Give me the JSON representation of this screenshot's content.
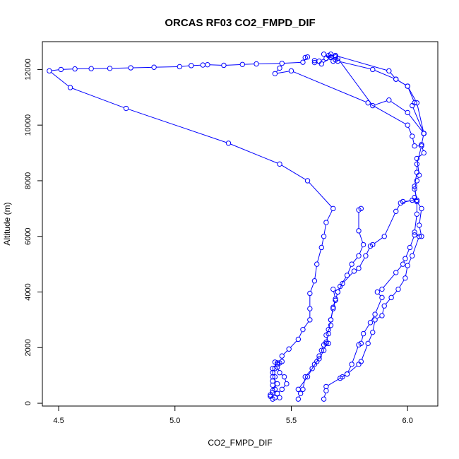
{
  "chart_data": {
    "type": "line",
    "title": "ORCAS RF03 CO2_FMPD_DIF",
    "xlabel": "CO2_FMPD_DIF",
    "ylabel": "Altitude (m)",
    "xlim": [
      4.43,
      6.13
    ],
    "ylim": [
      -100,
      13000
    ],
    "xticks": [
      4.5,
      5.0,
      5.5,
      6.0
    ],
    "yticks": [
      0,
      2000,
      4000,
      6000,
      8000,
      10000,
      12000
    ],
    "xtick_labels": [
      "4.5",
      "5.0",
      "5.5",
      "6.0"
    ],
    "ytick_labels": [
      "0",
      "2000",
      "4000",
      "6000",
      "8000",
      "10000",
      "12000"
    ],
    "marker": "open-circle",
    "grid": false,
    "color": "#0000ff",
    "series": [
      {
        "values": [
          [
            5.42,
            150
          ],
          [
            5.41,
            250
          ],
          [
            5.42,
            380
          ],
          [
            5.43,
            500
          ],
          [
            5.42,
            650
          ],
          [
            5.42,
            800
          ],
          [
            5.43,
            950
          ],
          [
            5.42,
            1100
          ],
          [
            5.43,
            1250
          ],
          [
            5.44,
            1400
          ],
          [
            5.45,
            1450
          ],
          [
            5.46,
            1500
          ],
          [
            5.46,
            1700
          ],
          [
            5.49,
            1950
          ],
          [
            5.53,
            2300
          ],
          [
            5.55,
            2650
          ],
          [
            5.58,
            3000
          ],
          [
            5.58,
            3400
          ],
          [
            5.58,
            3950
          ],
          [
            5.6,
            4400
          ],
          [
            5.61,
            5000
          ],
          [
            5.63,
            5600
          ],
          [
            5.64,
            6000
          ],
          [
            5.65,
            6500
          ],
          [
            5.68,
            7000
          ],
          [
            5.57,
            8000
          ],
          [
            5.45,
            8600
          ],
          [
            5.23,
            9350
          ],
          [
            4.79,
            10600
          ],
          [
            4.55,
            11350
          ],
          [
            4.46,
            11950
          ],
          [
            4.51,
            12000
          ],
          [
            4.57,
            12020
          ],
          [
            4.64,
            12030
          ],
          [
            4.72,
            12040
          ],
          [
            4.81,
            12060
          ],
          [
            4.91,
            12080
          ],
          [
            5.02,
            12100
          ],
          [
            5.07,
            12140
          ],
          [
            5.12,
            12160
          ],
          [
            5.14,
            12170
          ],
          [
            5.21,
            12150
          ],
          [
            5.29,
            12180
          ],
          [
            5.35,
            12200
          ],
          [
            5.46,
            12220
          ],
          [
            5.55,
            12260
          ],
          [
            5.57,
            12450
          ],
          [
            5.56,
            12430
          ]
        ]
      },
      {
        "values": [
          [
            5.45,
            200
          ],
          [
            5.44,
            350
          ],
          [
            5.46,
            500
          ],
          [
            5.48,
            700
          ],
          [
            5.47,
            950
          ],
          [
            5.45,
            1100
          ],
          [
            5.44,
            1300
          ],
          [
            5.43,
            1480
          ],
          [
            5.44,
            1450
          ],
          [
            5.42,
            1250
          ],
          [
            5.42,
            950
          ],
          [
            5.44,
            700
          ],
          [
            5.42,
            450
          ],
          [
            5.41,
            300
          ],
          [
            5.43,
            200
          ]
        ]
      },
      {
        "values": [
          [
            5.53,
            150
          ],
          [
            5.54,
            350
          ],
          [
            5.55,
            500
          ],
          [
            5.56,
            950
          ],
          [
            5.59,
            1250
          ],
          [
            5.61,
            1500
          ],
          [
            5.62,
            1700
          ],
          [
            5.63,
            1900
          ],
          [
            5.64,
            2100
          ],
          [
            5.65,
            2200
          ],
          [
            5.66,
            2500
          ],
          [
            5.66,
            2650
          ],
          [
            5.67,
            3000
          ],
          [
            5.68,
            3400
          ],
          [
            5.69,
            3700
          ],
          [
            5.7,
            4000
          ],
          [
            5.71,
            4200
          ],
          [
            5.74,
            4600
          ],
          [
            5.76,
            5000
          ],
          [
            5.79,
            5300
          ],
          [
            5.81,
            5700
          ],
          [
            5.79,
            6200
          ],
          [
            5.79,
            6950
          ],
          [
            5.8,
            7000
          ]
        ]
      },
      {
        "values": [
          [
            5.53,
            500
          ],
          [
            5.57,
            950
          ],
          [
            5.6,
            1400
          ],
          [
            5.62,
            1600
          ],
          [
            5.64,
            1900
          ],
          [
            5.65,
            2150
          ],
          [
            5.66,
            2150
          ],
          [
            5.65,
            2450
          ],
          [
            5.67,
            2800
          ],
          [
            5.67,
            3000
          ],
          [
            5.68,
            3450
          ],
          [
            5.69,
            3750
          ],
          [
            5.68,
            4100
          ],
          [
            5.7,
            4000
          ],
          [
            5.72,
            4300
          ],
          [
            5.77,
            4750
          ],
          [
            5.79,
            4850
          ],
          [
            5.82,
            5300
          ],
          [
            5.84,
            5650
          ],
          [
            5.85,
            5700
          ],
          [
            5.9,
            6000
          ],
          [
            5.95,
            6900
          ],
          [
            5.97,
            7200
          ],
          [
            6.02,
            7300
          ],
          [
            6.03,
            7400
          ],
          [
            6.04,
            7300
          ],
          [
            5.98,
            7250
          ]
        ]
      },
      {
        "values": [
          [
            5.64,
            150
          ],
          [
            5.65,
            450
          ],
          [
            5.65,
            600
          ],
          [
            5.72,
            950
          ],
          [
            5.74,
            1050
          ],
          [
            5.79,
            1400
          ],
          [
            5.8,
            1500
          ],
          [
            5.83,
            2150
          ],
          [
            5.85,
            2550
          ],
          [
            5.86,
            3000
          ],
          [
            5.89,
            3150
          ],
          [
            5.9,
            3500
          ],
          [
            5.93,
            3800
          ],
          [
            5.96,
            4100
          ],
          [
            5.99,
            4500
          ],
          [
            6.0,
            4950
          ],
          [
            6.02,
            5300
          ],
          [
            6.05,
            6000
          ],
          [
            6.03,
            6150
          ],
          [
            6.04,
            6800
          ],
          [
            6.04,
            7300
          ],
          [
            6.03,
            7700
          ],
          [
            6.04,
            8000
          ],
          [
            6.05,
            8200
          ],
          [
            6.04,
            8800
          ],
          [
            6.07,
            9000
          ],
          [
            6.06,
            9300
          ],
          [
            6.07,
            9700
          ]
        ]
      },
      {
        "values": [
          [
            5.71,
            900
          ],
          [
            5.74,
            1050
          ],
          [
            5.76,
            1400
          ],
          [
            5.79,
            2100
          ],
          [
            5.8,
            2150
          ],
          [
            5.81,
            2500
          ],
          [
            5.84,
            2900
          ],
          [
            5.86,
            3200
          ],
          [
            5.89,
            3800
          ],
          [
            5.87,
            4000
          ],
          [
            5.89,
            4100
          ],
          [
            5.95,
            4700
          ],
          [
            5.98,
            5000
          ],
          [
            5.99,
            5200
          ],
          [
            6.01,
            5600
          ],
          [
            6.03,
            6050
          ],
          [
            6.06,
            6000
          ],
          [
            6.05,
            6400
          ],
          [
            6.06,
            7000
          ],
          [
            6.04,
            7250
          ],
          [
            6.03,
            7800
          ],
          [
            6.04,
            8300
          ],
          [
            6.04,
            8600
          ],
          [
            6.06,
            9250
          ],
          [
            6.03,
            9250
          ],
          [
            6.02,
            9600
          ],
          [
            6.0,
            10000
          ],
          [
            5.83,
            10800
          ],
          [
            5.5,
            11950
          ],
          [
            5.43,
            11850
          ],
          [
            5.45,
            12050
          ]
        ]
      },
      {
        "values": [
          [
            6.07,
            9700
          ],
          [
            6.02,
            10700
          ],
          [
            6.03,
            10800
          ],
          [
            6.0,
            11400
          ],
          [
            5.95,
            11650
          ],
          [
            5.92,
            11950
          ],
          [
            5.69,
            12500
          ],
          [
            5.67,
            12550
          ],
          [
            5.69,
            12450
          ],
          [
            5.68,
            12300
          ],
          [
            5.67,
            12450
          ],
          [
            5.69,
            12350
          ],
          [
            5.64,
            12550
          ]
        ]
      },
      {
        "values": [
          [
            6.07,
            9700
          ],
          [
            6.0,
            10450
          ],
          [
            5.92,
            10900
          ],
          [
            5.85,
            10700
          ],
          [
            5.7,
            12400
          ],
          [
            5.69,
            12500
          ],
          [
            5.66,
            12500
          ],
          [
            5.65,
            12400
          ],
          [
            5.62,
            12300
          ],
          [
            5.6,
            12320
          ]
        ]
      },
      {
        "values": [
          [
            6.07,
            9700
          ],
          [
            6.04,
            10800
          ],
          [
            6.0,
            11400
          ],
          [
            5.95,
            11650
          ],
          [
            5.85,
            12000
          ],
          [
            5.7,
            12300
          ],
          [
            5.69,
            12500
          ],
          [
            5.67,
            12430
          ],
          [
            5.63,
            12200
          ],
          [
            5.6,
            12250
          ]
        ]
      }
    ]
  }
}
